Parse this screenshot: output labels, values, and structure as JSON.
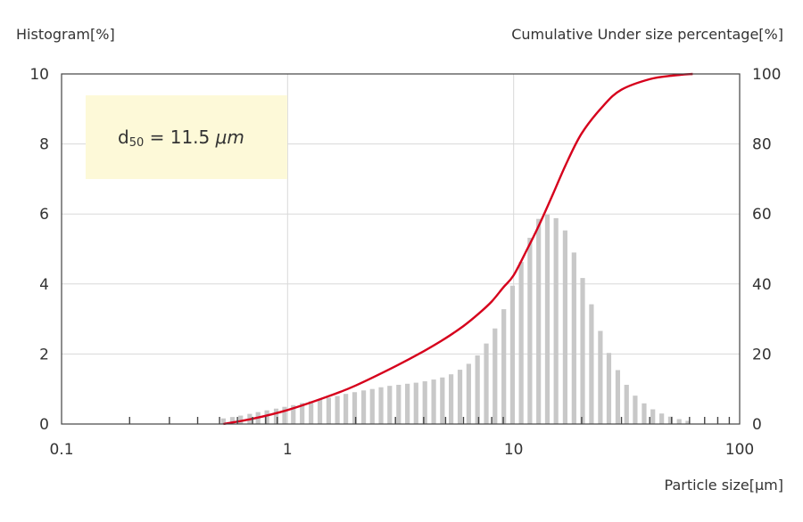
{
  "chart_data": {
    "type": "bar",
    "y_left_label": "Histogram[%]",
    "y_right_label": "Cumulative Under size percentage[%]",
    "xlabel": "Particle size[µm]",
    "x_scale": "log",
    "xlim": [
      0.1,
      100
    ],
    "ylim_left": [
      0,
      10
    ],
    "ylim_right": [
      0,
      100
    ],
    "x_ticks": [
      "0.1",
      "1",
      "10",
      "100"
    ],
    "y_left_ticks": [
      "0",
      "2",
      "4",
      "6",
      "8",
      "10"
    ],
    "y_right_ticks": [
      "0",
      "20",
      "40",
      "60",
      "80",
      "100"
    ],
    "grid": true,
    "annotation": {
      "main": "d",
      "sub": "50",
      "rest": " = 11.5 ",
      "unit": "μm",
      "bg_color": "#fdf9d8"
    },
    "histogram": {
      "name": "Histogram",
      "color": "#c8c8c8",
      "x": [
        0.52,
        0.57,
        0.62,
        0.68,
        0.74,
        0.81,
        0.89,
        0.97,
        1.06,
        1.16,
        1.27,
        1.39,
        1.52,
        1.66,
        1.81,
        1.98,
        2.17,
        2.37,
        2.59,
        2.83,
        3.1,
        3.39,
        3.7,
        4.05,
        4.43,
        4.84,
        5.29,
        5.79,
        6.33,
        6.92,
        7.57,
        8.27,
        9.05,
        9.89,
        10.8,
        11.8,
        12.9,
        14.1,
        15.4,
        16.9,
        18.5,
        20.2,
        22.1,
        24.2,
        26.4,
        28.9,
        31.6,
        34.5,
        37.8,
        41.3,
        45.2,
        49.4,
        54.0,
        59.0
      ],
      "values": [
        0.16,
        0.2,
        0.24,
        0.29,
        0.34,
        0.39,
        0.44,
        0.49,
        0.54,
        0.6,
        0.65,
        0.7,
        0.75,
        0.8,
        0.86,
        0.91,
        0.96,
        1.0,
        1.05,
        1.09,
        1.12,
        1.15,
        1.18,
        1.22,
        1.27,
        1.33,
        1.42,
        1.55,
        1.72,
        1.96,
        2.3,
        2.73,
        3.28,
        3.95,
        4.63,
        5.32,
        5.86,
        5.98,
        5.88,
        5.53,
        4.9,
        4.17,
        3.42,
        2.66,
        2.03,
        1.54,
        1.12,
        0.81,
        0.59,
        0.42,
        0.3,
        0.21,
        0.14,
        0.09
      ]
    },
    "cumulative": {
      "name": "Cumulative",
      "color": "#d6001c",
      "x": [
        0.52,
        0.7,
        1.0,
        1.5,
        2.0,
        3.0,
        4.0,
        5.0,
        6.0,
        7.0,
        8.0,
        9.0,
        10.0,
        11.5,
        13.0,
        15.0,
        17.0,
        20.0,
        25.0,
        30.0,
        40.0,
        50.0,
        62.0
      ],
      "values": [
        0.0,
        1.5,
        4.0,
        7.8,
        11.0,
        16.5,
        20.8,
        24.5,
        28.0,
        31.5,
        35.0,
        39.0,
        42.5,
        50.0,
        57.0,
        66.0,
        74.0,
        83.0,
        91.0,
        95.5,
        98.5,
        99.5,
        100.0
      ]
    }
  }
}
